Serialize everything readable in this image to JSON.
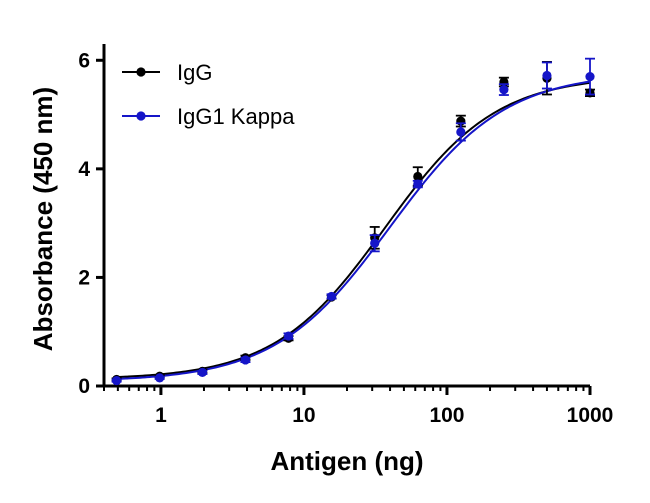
{
  "chart_data": {
    "type": "scatter",
    "xlabel": "Antigen (ng)",
    "ylabel": "Absorbance (450 nm)",
    "x_scale": "log",
    "xlim": [
      0.4,
      1000
    ],
    "ylim": [
      0,
      6.3
    ],
    "x_ticks": [
      1,
      10,
      100,
      1000
    ],
    "x_tick_labels": [
      "1",
      "10",
      "100",
      "1000"
    ],
    "y_ticks": [
      0,
      2,
      4,
      6
    ],
    "y_tick_labels": [
      "0",
      "2",
      "4",
      "6"
    ],
    "grid": false,
    "legend_position": "top-left",
    "fit": "sigmoidal (4PL) curve through each series",
    "series": [
      {
        "name": "IgG",
        "color": "#000000",
        "x": [
          0.49,
          0.98,
          1.95,
          3.9,
          7.8,
          15.6,
          31.25,
          62.5,
          125,
          250,
          500,
          1000
        ],
        "y": [
          0.12,
          0.18,
          0.27,
          0.52,
          0.88,
          1.64,
          2.73,
          3.86,
          4.88,
          5.6,
          5.67,
          5.4
        ],
        "err": [
          0.02,
          0.02,
          0.03,
          0.04,
          0.04,
          0.03,
          0.2,
          0.17,
          0.1,
          0.08,
          0.3,
          0.06
        ],
        "fit_params": {
          "bottom": 0.12,
          "top": 5.72,
          "ec50": 37,
          "hill": 1.12
        }
      },
      {
        "name": "IgG1 Kappa",
        "color": "#1515c8",
        "x": [
          0.49,
          0.98,
          1.95,
          3.9,
          7.8,
          15.6,
          31.25,
          62.5,
          125,
          250,
          500,
          1000
        ],
        "y": [
          0.1,
          0.15,
          0.25,
          0.48,
          0.92,
          1.65,
          2.63,
          3.72,
          4.68,
          5.46,
          5.72,
          5.7
        ],
        "err": [
          0.02,
          0.02,
          0.03,
          0.04,
          0.05,
          0.04,
          0.15,
          0.06,
          0.16,
          0.1,
          0.24,
          0.33
        ],
        "fit_params": {
          "bottom": 0.08,
          "top": 5.78,
          "ec50": 40,
          "hill": 1.08
        }
      }
    ]
  }
}
